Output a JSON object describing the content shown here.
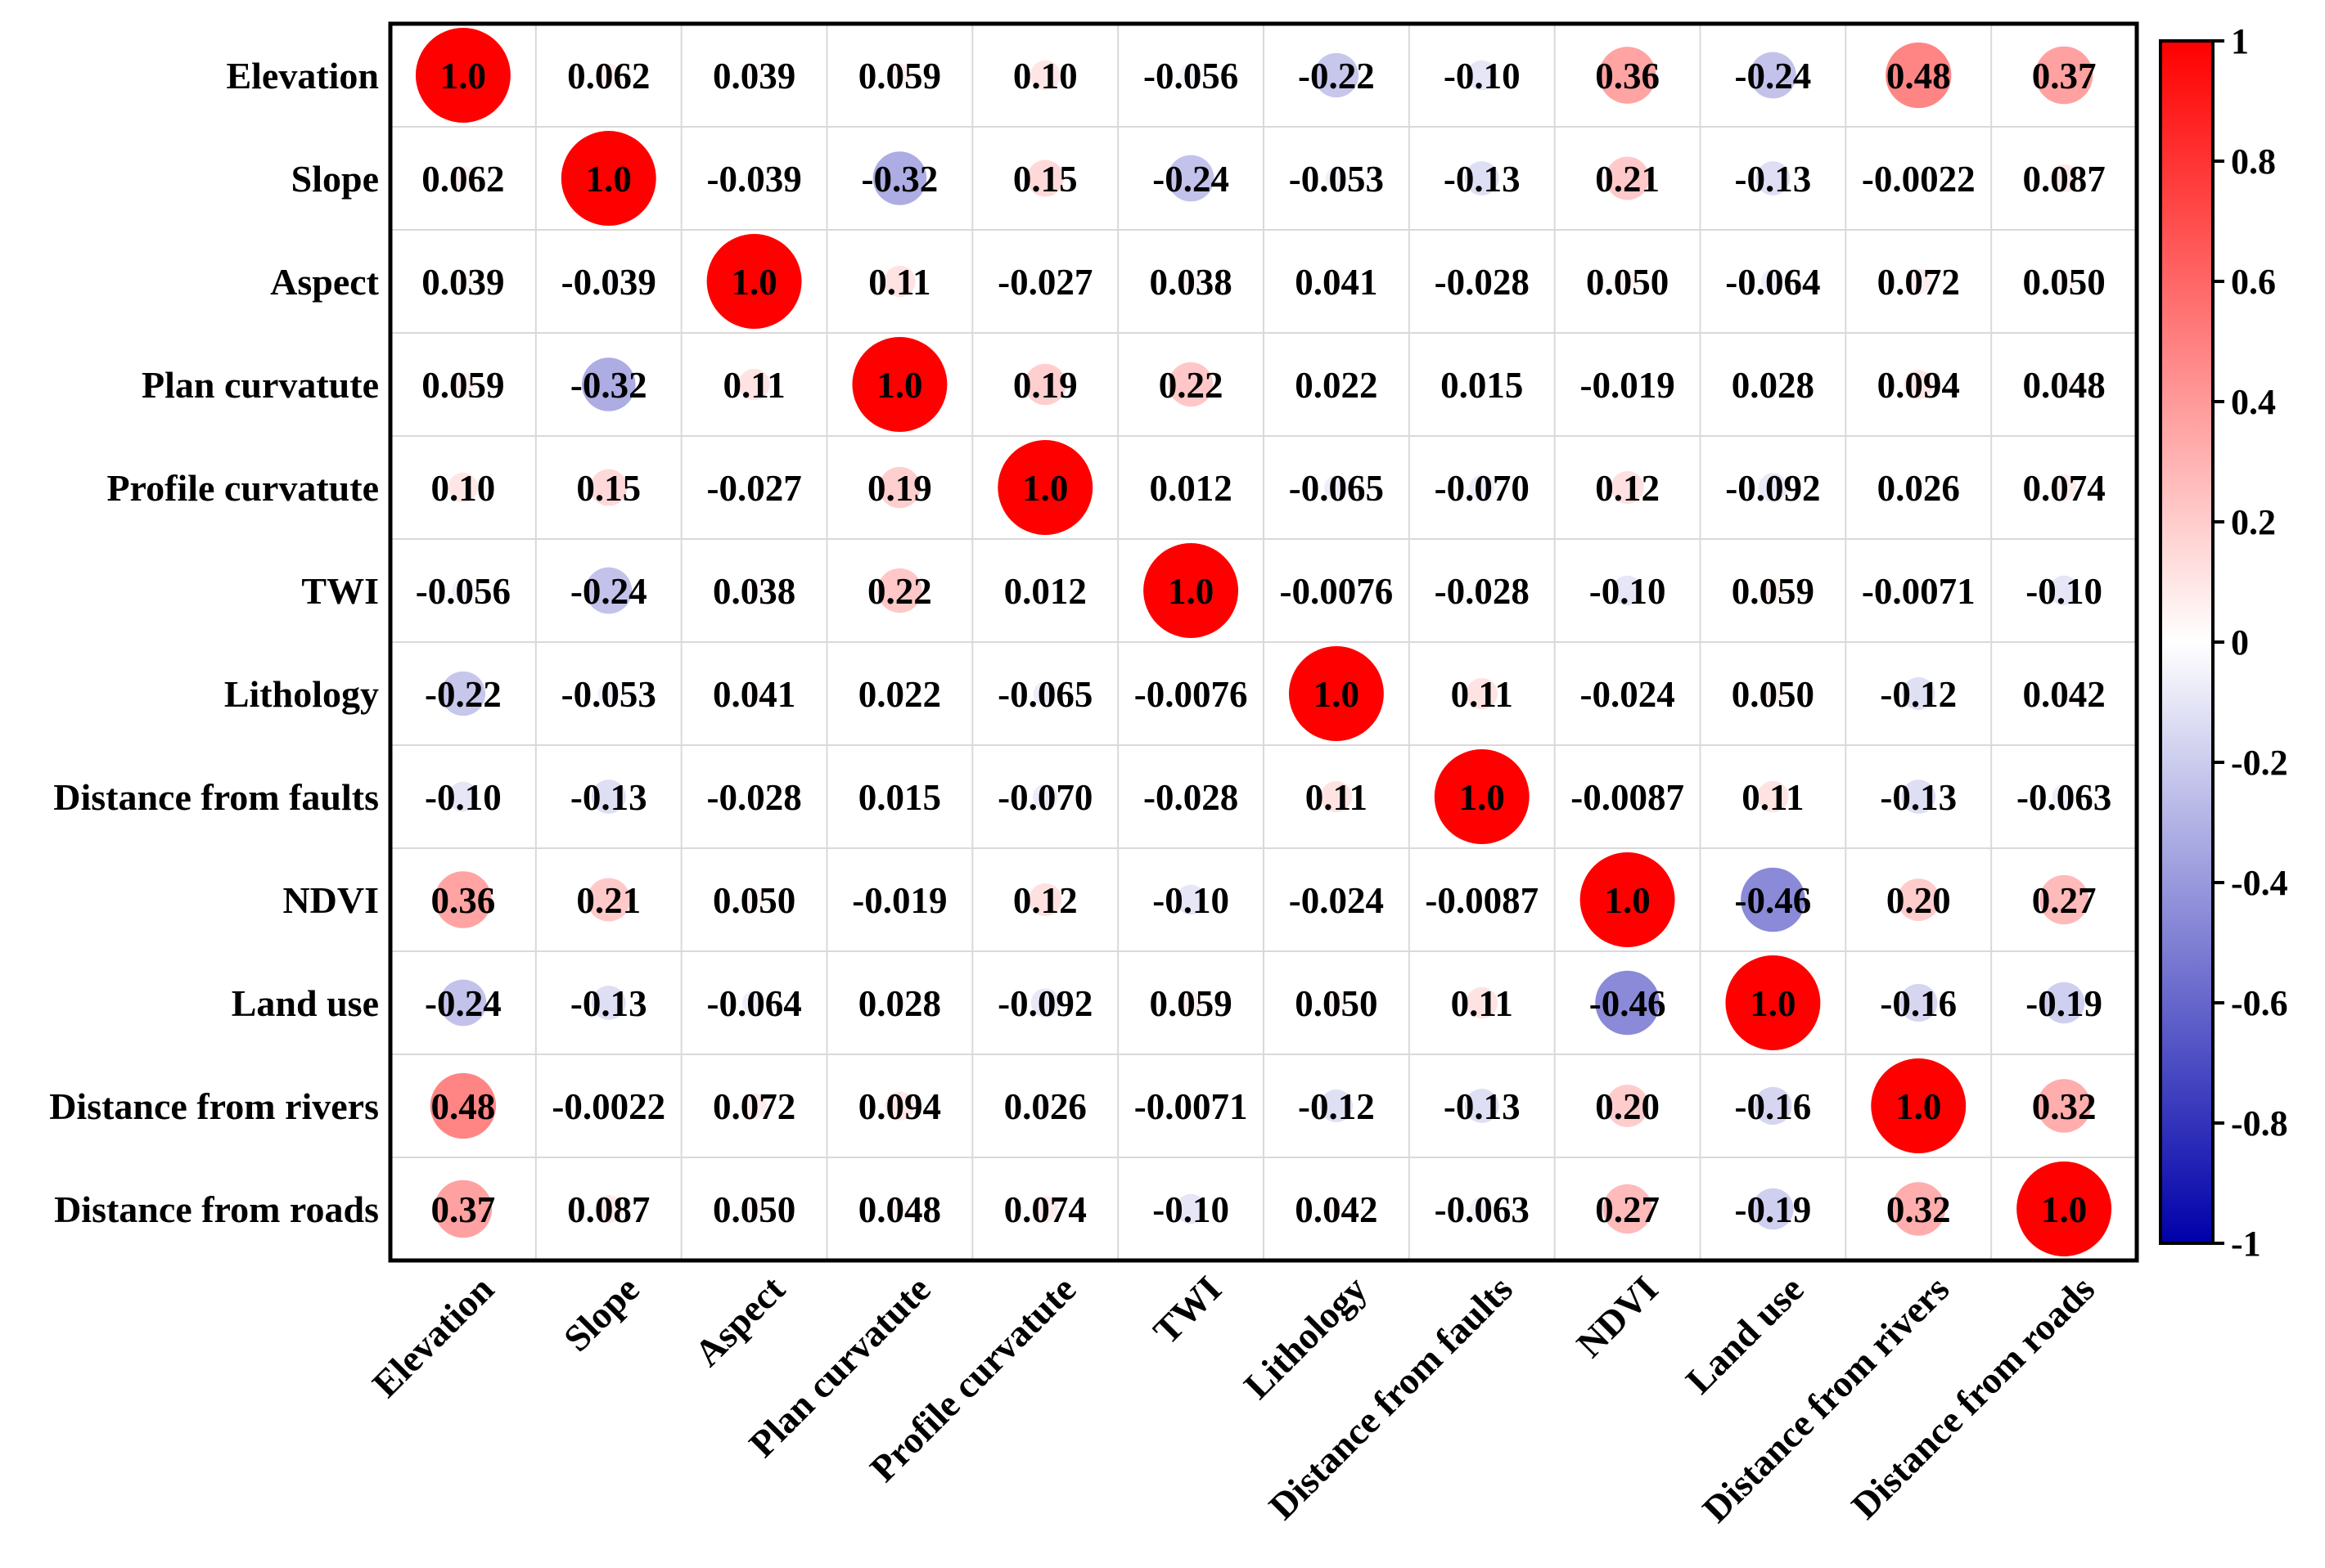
{
  "chart_data": {
    "type": "heatmap",
    "subtype": "correlation-circle-matrix",
    "title": "",
    "variables": [
      "Elevation",
      "Slope",
      "Aspect",
      "Plan curvatute",
      "Profile curvatute",
      "TWI",
      "Lithology",
      "Distance from faults",
      "NDVI",
      "Land use",
      "Distance from rivers",
      "Distance from roads"
    ],
    "labels": [
      [
        "1.0",
        "0.062",
        "0.039",
        "0.059",
        "0.10",
        "-0.056",
        "-0.22",
        "-0.10",
        "0.36",
        "-0.24",
        "0.48",
        "0.37"
      ],
      [
        "0.062",
        "1.0",
        "-0.039",
        "-0.32",
        "0.15",
        "-0.24",
        "-0.053",
        "-0.13",
        "0.21",
        "-0.13",
        "-0.0022",
        "0.087"
      ],
      [
        "0.039",
        "-0.039",
        "1.0",
        "0.11",
        "-0.027",
        "0.038",
        "0.041",
        "-0.028",
        "0.050",
        "-0.064",
        "0.072",
        "0.050"
      ],
      [
        "0.059",
        "-0.32",
        "0.11",
        "1.0",
        "0.19",
        "0.22",
        "0.022",
        "0.015",
        "-0.019",
        "0.028",
        "0.094",
        "0.048"
      ],
      [
        "0.10",
        "0.15",
        "-0.027",
        "0.19",
        "1.0",
        "0.012",
        "-0.065",
        "-0.070",
        "0.12",
        "-0.092",
        "0.026",
        "0.074"
      ],
      [
        "-0.056",
        "-0.24",
        "0.038",
        "0.22",
        "0.012",
        "1.0",
        "-0.0076",
        "-0.028",
        "-0.10",
        "0.059",
        "-0.0071",
        "-0.10"
      ],
      [
        "-0.22",
        "-0.053",
        "0.041",
        "0.022",
        "-0.065",
        "-0.0076",
        "1.0",
        "0.11",
        "-0.024",
        "0.050",
        "-0.12",
        "0.042"
      ],
      [
        "-0.10",
        "-0.13",
        "-0.028",
        "0.015",
        "-0.070",
        "-0.028",
        "0.11",
        "1.0",
        "-0.0087",
        "0.11",
        "-0.13",
        "-0.063"
      ],
      [
        "0.36",
        "0.21",
        "0.050",
        "-0.019",
        "0.12",
        "-0.10",
        "-0.024",
        "-0.0087",
        "1.0",
        "-0.46",
        "0.20",
        "0.27"
      ],
      [
        "-0.24",
        "-0.13",
        "-0.064",
        "0.028",
        "-0.092",
        "0.059",
        "0.050",
        "0.11",
        "-0.46",
        "1.0",
        "-0.16",
        "-0.19"
      ],
      [
        "0.48",
        "-0.0022",
        "0.072",
        "0.094",
        "0.026",
        "-0.0071",
        "-0.12",
        "-0.13",
        "0.20",
        "-0.16",
        "1.0",
        "0.32"
      ],
      [
        "0.37",
        "0.087",
        "0.050",
        "0.048",
        "0.074",
        "-0.10",
        "0.042",
        "-0.063",
        "0.27",
        "-0.19",
        "0.32",
        "1.0"
      ]
    ],
    "color_scale": {
      "min": -1,
      "max": 1,
      "colors": [
        "#0000aa",
        "#ffffff",
        "#ff0000"
      ],
      "ticks": [
        "1",
        "0.8",
        "0.6",
        "0.4",
        "0.2",
        "0",
        "-0.2",
        "-0.4",
        "-0.6",
        "-0.8",
        "-1"
      ]
    },
    "grid": true
  }
}
